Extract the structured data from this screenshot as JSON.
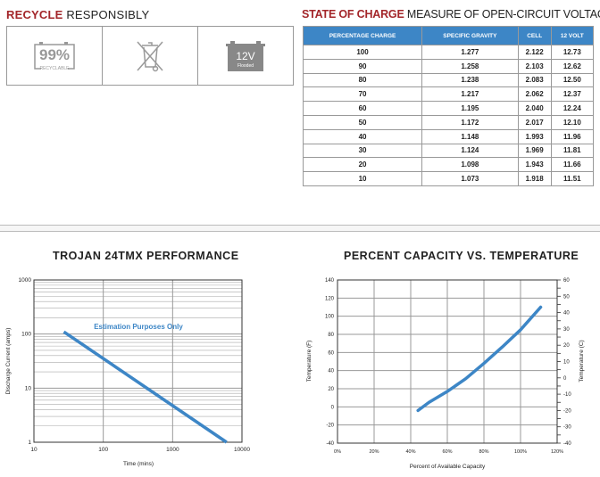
{
  "recycle": {
    "title_accent": "RECYCLE",
    "title_rest": " RESPONSIBLY",
    "icons": [
      {
        "name": "recyclable-battery-icon",
        "big": "99%",
        "small": "RECYCLABLE"
      },
      {
        "name": "crossed-out-bin-icon"
      },
      {
        "name": "flooded-battery-icon",
        "big": "12V",
        "small": "Flooded"
      }
    ]
  },
  "soc": {
    "title_accent": "STATE OF CHARGE",
    "title_rest": " MEASURE OF OPEN-CIRCUIT VOLTAGE",
    "columns": [
      "PERCENTAGE CHARGE",
      "SPECIFIC GRAVITY",
      "CELL",
      "12 VOLT"
    ],
    "rows": [
      [
        "100",
        "1.277",
        "2.122",
        "12.73"
      ],
      [
        "90",
        "1.258",
        "2.103",
        "12.62"
      ],
      [
        "80",
        "1.238",
        "2.083",
        "12.50"
      ],
      [
        "70",
        "1.217",
        "2.062",
        "12.37"
      ],
      [
        "60",
        "1.195",
        "2.040",
        "12.24"
      ],
      [
        "50",
        "1.172",
        "2.017",
        "12.10"
      ],
      [
        "40",
        "1.148",
        "1.993",
        "11.96"
      ],
      [
        "30",
        "1.124",
        "1.969",
        "11.81"
      ],
      [
        "20",
        "1.098",
        "1.943",
        "11.66"
      ],
      [
        "10",
        "1.073",
        "1.918",
        "11.51"
      ]
    ],
    "header_color": "#3d86c6"
  },
  "chart_data": [
    {
      "type": "line",
      "title": "TROJAN 24TMX PERFORMANCE",
      "xlabel": "Time (mins)",
      "ylabel": "Discharge Current (amps)",
      "xscale": "log",
      "yscale": "log",
      "xlim": [
        10,
        10000
      ],
      "ylim": [
        1,
        1000
      ],
      "xticks": [
        "10",
        "100",
        "1000",
        "10000"
      ],
      "yticks": [
        "1",
        "10",
        "100",
        "1000"
      ],
      "annotation": "Estimation Purposes Only",
      "grid": true,
      "series": [
        {
          "color": "#3d86c6",
          "x": [
            27,
            6000
          ],
          "y": [
            110,
            1
          ]
        }
      ]
    },
    {
      "type": "line",
      "title": "PERCENT CAPACITY VS. TEMPERATURE",
      "xlabel": "Percent of Available Capacity",
      "ylabel": "Temperature (F)",
      "ylabel_right": "Temperature (C)",
      "xlim": [
        0,
        120
      ],
      "ylim": [
        -40,
        140
      ],
      "ylim_right": [
        -40,
        60
      ],
      "xticks": [
        "0%",
        "20%",
        "40%",
        "60%",
        "80%",
        "100%",
        "120%"
      ],
      "yticks": [
        "-40",
        "-20",
        "0",
        "20",
        "40",
        "60",
        "80",
        "100",
        "120",
        "140"
      ],
      "yticks_right": [
        "-40",
        "-30",
        "-20",
        "-10",
        "0",
        "10",
        "20",
        "30",
        "40",
        "50",
        "60"
      ],
      "grid": true,
      "series": [
        {
          "color": "#3d86c6",
          "x": [
            44,
            50,
            60,
            70,
            80,
            90,
            100,
            111
          ],
          "y": [
            -4,
            5,
            17,
            31,
            48,
            66,
            85,
            110
          ]
        }
      ]
    }
  ]
}
